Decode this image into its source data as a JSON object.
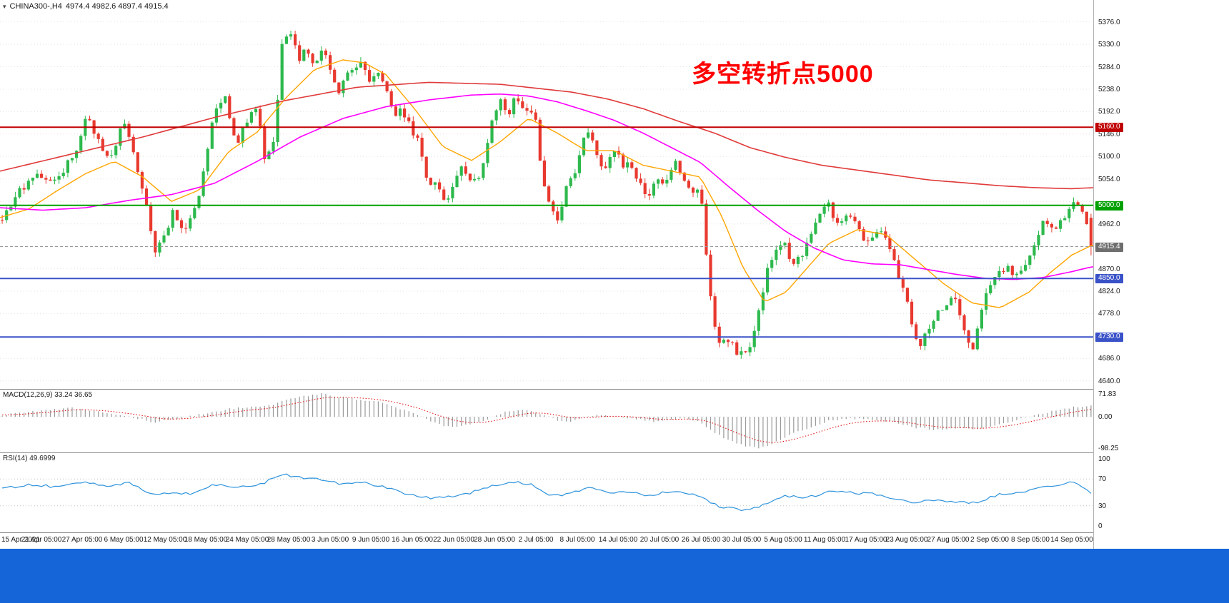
{
  "header": {
    "symbol_label": "CHINA300-,H4",
    "ohlc": "4974.4 4982.6 4897.4 4915.4"
  },
  "annotation": {
    "text": "多空转折点5000",
    "color": "#FF0000"
  },
  "colors": {
    "background": "#ffffff",
    "candle_up": "#2DB94D",
    "candle_down": "#E8392F",
    "ma_fast": "#FFA500",
    "ma_mid": "#FF00FF",
    "ma_slow": "#E03A3A",
    "macd_hist": "#9A9A9A",
    "macd_signal": "#E00000",
    "rsi_line": "#2E93DC",
    "grid": "#E4E4E4",
    "level_line": "#C0C0C0",
    "taskbar": "#1565D8",
    "scale_text": "#1a1a1a"
  },
  "price_scale": {
    "grid": {
      "min": 4640,
      "max": 5376,
      "step": 46
    },
    "ticks": [
      {
        "label": "5376.0",
        "price": 5376
      },
      {
        "label": "5330.0",
        "price": 5330
      },
      {
        "label": "5284.0",
        "price": 5284
      },
      {
        "label": "5238.0",
        "price": 5238
      },
      {
        "label": "5192.0",
        "price": 5192
      },
      {
        "label": "5146.0",
        "price": 5146
      },
      {
        "label": "5100.0",
        "price": 5100
      },
      {
        "label": "5054.0",
        "price": 5054
      },
      {
        "label": "4962.0",
        "price": 4962
      },
      {
        "label": "4870.0",
        "price": 4870
      },
      {
        "label": "4824.0",
        "price": 4824
      },
      {
        "label": "4778.0",
        "price": 4778
      },
      {
        "label": "4686.0",
        "price": 4686
      },
      {
        "label": "4640.0",
        "price": 4640
      }
    ],
    "badges": [
      {
        "label": "5160.0",
        "price": 5160,
        "color": "#C00000"
      },
      {
        "label": "5000.0",
        "price": 5000,
        "color": "#00A000"
      },
      {
        "label": "4915.4",
        "price": 4915.4,
        "color": "#6E6E6E"
      },
      {
        "label": "4850.0",
        "price": 4850,
        "color": "#3A52C8"
      },
      {
        "label": "4730.0",
        "price": 4730,
        "color": "#3A52C8"
      }
    ]
  },
  "indicators": {
    "macd": {
      "label": "MACD(12,26,9) 33.24 36.65",
      "scale": [
        {
          "label": "71.83",
          "value": 71.83
        },
        {
          "label": "0.00",
          "value": 0
        },
        {
          "label": "-98.25",
          "value": -98.25
        }
      ],
      "range": [
        -98.25,
        71.83
      ]
    },
    "rsi": {
      "label": "RSI(14) 49.6999",
      "scale": [
        {
          "label": "100",
          "value": 100
        },
        {
          "label": "70",
          "value": 70
        },
        {
          "label": "30",
          "value": 30
        },
        {
          "label": "0",
          "value": 0
        }
      ],
      "levels": [
        70,
        30
      ],
      "range": [
        0,
        100
      ]
    }
  },
  "time_scale": {
    "labels": [
      "15 Apr 2021",
      "21 Apr 05:00",
      "27 Apr 05:00",
      "6 May 05:00",
      "12 May 05:00",
      "18 May 05:00",
      "24 May 05:00",
      "28 May 05:00",
      "3 Jun 05:00",
      "9 Jun 05:00",
      "16 Jun 05:00",
      "22 Jun 05:00",
      "28 Jun 05:00",
      "2 Jul 05:00",
      "8 Jul 05:00",
      "14 Jul 05:00",
      "20 Jul 05:00",
      "26 Jul 05:00",
      "30 Jul 05:00",
      "5 Aug 05:00",
      "11 Aug 05:00",
      "17 Aug 05:00",
      "23 Aug 05:00",
      "27 Aug 05:00",
      "2 Sep 05:00",
      "8 Sep 05:00",
      "14 Sep 05:00"
    ]
  },
  "chart_data": {
    "type": "candlestick",
    "symbol": "CHINA300-",
    "timeframe": "H4",
    "title": "CHINA300- H4 with MACD(12,26,9) and RSI(14)",
    "current_bar": {
      "open": 4974.4,
      "high": 4982.6,
      "low": 4897.4,
      "close": 4915.4
    },
    "current_price": 4915.4,
    "price_range": [
      4628,
      5412
    ],
    "bars": 250,
    "close_path": [
      [
        0,
        4960
      ],
      [
        25,
        5030
      ],
      [
        55,
        5060
      ],
      [
        80,
        5050
      ],
      [
        105,
        5110
      ],
      [
        122,
        5185
      ],
      [
        140,
        5120
      ],
      [
        158,
        5100
      ],
      [
        172,
        5180
      ],
      [
        190,
        5090
      ],
      [
        205,
        4995
      ],
      [
        215,
        4905
      ],
      [
        228,
        4930
      ],
      [
        242,
        4985
      ],
      [
        255,
        4950
      ],
      [
        268,
        4975
      ],
      [
        282,
        5040
      ],
      [
        300,
        5190
      ],
      [
        315,
        5230
      ],
      [
        330,
        5120
      ],
      [
        345,
        5175
      ],
      [
        360,
        5200
      ],
      [
        372,
        5080
      ],
      [
        385,
        5150
      ],
      [
        395,
        5330
      ],
      [
        405,
        5360
      ],
      [
        418,
        5300
      ],
      [
        428,
        5330
      ],
      [
        440,
        5290
      ],
      [
        452,
        5330
      ],
      [
        462,
        5280
      ],
      [
        472,
        5230
      ],
      [
        482,
        5260
      ],
      [
        492,
        5280
      ],
      [
        505,
        5295
      ],
      [
        518,
        5250
      ],
      [
        530,
        5280
      ],
      [
        542,
        5230
      ],
      [
        552,
        5180
      ],
      [
        562,
        5200
      ],
      [
        575,
        5160
      ],
      [
        588,
        5120
      ],
      [
        600,
        5030
      ],
      [
        612,
        5050
      ],
      [
        622,
        5005
      ],
      [
        635,
        5040
      ],
      [
        648,
        5080
      ],
      [
        660,
        5050
      ],
      [
        672,
        5060
      ],
      [
        685,
        5150
      ],
      [
        700,
        5225
      ],
      [
        712,
        5180
      ],
      [
        722,
        5225
      ],
      [
        735,
        5200
      ],
      [
        748,
        5195
      ],
      [
        760,
        5040
      ],
      [
        772,
        4990
      ],
      [
        782,
        4960
      ],
      [
        795,
        5050
      ],
      [
        808,
        5080
      ],
      [
        820,
        5150
      ],
      [
        832,
        5120
      ],
      [
        845,
        5060
      ],
      [
        858,
        5120
      ],
      [
        870,
        5085
      ],
      [
        882,
        5080
      ],
      [
        895,
        5045
      ],
      [
        908,
        5020
      ],
      [
        920,
        5060
      ],
      [
        932,
        5040
      ],
      [
        944,
        5090
      ],
      [
        956,
        5055
      ],
      [
        968,
        5030
      ],
      [
        980,
        5045
      ],
      [
        992,
        4830
      ],
      [
        1005,
        4710
      ],
      [
        1018,
        4725
      ],
      [
        1032,
        4700
      ],
      [
        1045,
        4695
      ],
      [
        1058,
        4755
      ],
      [
        1072,
        4860
      ],
      [
        1085,
        4905
      ],
      [
        1098,
        4920
      ],
      [
        1110,
        4870
      ],
      [
        1122,
        4900
      ],
      [
        1135,
        4945
      ],
      [
        1148,
        4985
      ],
      [
        1160,
        5000
      ],
      [
        1172,
        4960
      ],
      [
        1185,
        4975
      ],
      [
        1198,
        4970
      ],
      [
        1210,
        4930
      ],
      [
        1222,
        4935
      ],
      [
        1235,
        4950
      ],
      [
        1248,
        4900
      ],
      [
        1260,
        4845
      ],
      [
        1272,
        4790
      ],
      [
        1285,
        4700
      ],
      [
        1298,
        4745
      ],
      [
        1310,
        4775
      ],
      [
        1322,
        4785
      ],
      [
        1335,
        4820
      ],
      [
        1348,
        4750
      ],
      [
        1360,
        4700
      ],
      [
        1372,
        4770
      ],
      [
        1385,
        4840
      ],
      [
        1398,
        4865
      ],
      [
        1410,
        4870
      ],
      [
        1422,
        4850
      ],
      [
        1435,
        4880
      ],
      [
        1448,
        4920
      ],
      [
        1460,
        4975
      ],
      [
        1472,
        4950
      ],
      [
        1482,
        4965
      ],
      [
        1492,
        4985
      ],
      [
        1502,
        5010
      ],
      [
        1512,
        4990
      ],
      [
        1522,
        4960
      ],
      [
        1528,
        4915
      ]
    ],
    "ma_fast_path": [
      [
        0,
        4975
      ],
      [
        40,
        4992
      ],
      [
        80,
        5030
      ],
      [
        120,
        5065
      ],
      [
        160,
        5090
      ],
      [
        200,
        5058
      ],
      [
        240,
        5008
      ],
      [
        280,
        5032
      ],
      [
        320,
        5110
      ],
      [
        360,
        5150
      ],
      [
        400,
        5220
      ],
      [
        440,
        5278
      ],
      [
        480,
        5298
      ],
      [
        510,
        5292
      ],
      [
        540,
        5268
      ],
      [
        580,
        5198
      ],
      [
        620,
        5120
      ],
      [
        660,
        5092
      ],
      [
        700,
        5130
      ],
      [
        740,
        5178
      ],
      [
        780,
        5148
      ],
      [
        820,
        5112
      ],
      [
        860,
        5112
      ],
      [
        900,
        5082
      ],
      [
        940,
        5070
      ],
      [
        980,
        5058
      ],
      [
        1010,
        4978
      ],
      [
        1040,
        4872
      ],
      [
        1070,
        4802
      ],
      [
        1100,
        4822
      ],
      [
        1130,
        4872
      ],
      [
        1160,
        4922
      ],
      [
        1200,
        4950
      ],
      [
        1240,
        4940
      ],
      [
        1280,
        4890
      ],
      [
        1320,
        4840
      ],
      [
        1360,
        4800
      ],
      [
        1400,
        4790
      ],
      [
        1440,
        4822
      ],
      [
        1470,
        4862
      ],
      [
        1500,
        4898
      ],
      [
        1528,
        4918
      ]
    ],
    "ma_mid_path": [
      [
        0,
        4995
      ],
      [
        60,
        4990
      ],
      [
        120,
        4995
      ],
      [
        180,
        5010
      ],
      [
        240,
        5022
      ],
      [
        300,
        5045
      ],
      [
        360,
        5090
      ],
      [
        420,
        5140
      ],
      [
        480,
        5178
      ],
      [
        540,
        5202
      ],
      [
        600,
        5216
      ],
      [
        660,
        5226
      ],
      [
        700,
        5228
      ],
      [
        740,
        5224
      ],
      [
        780,
        5212
      ],
      [
        820,
        5194
      ],
      [
        860,
        5174
      ],
      [
        900,
        5148
      ],
      [
        940,
        5118
      ],
      [
        980,
        5088
      ],
      [
        1020,
        5038
      ],
      [
        1060,
        4990
      ],
      [
        1100,
        4946
      ],
      [
        1140,
        4912
      ],
      [
        1180,
        4888
      ],
      [
        1220,
        4880
      ],
      [
        1260,
        4878
      ],
      [
        1300,
        4868
      ],
      [
        1340,
        4858
      ],
      [
        1380,
        4850
      ],
      [
        1420,
        4848
      ],
      [
        1460,
        4852
      ],
      [
        1500,
        4864
      ],
      [
        1528,
        4874
      ]
    ],
    "ma_slow_path": [
      [
        0,
        5070
      ],
      [
        100,
        5105
      ],
      [
        200,
        5140
      ],
      [
        300,
        5180
      ],
      [
        400,
        5215
      ],
      [
        500,
        5242
      ],
      [
        600,
        5252
      ],
      [
        700,
        5248
      ],
      [
        800,
        5232
      ],
      [
        850,
        5218
      ],
      [
        900,
        5198
      ],
      [
        950,
        5172
      ],
      [
        1000,
        5148
      ],
      [
        1050,
        5118
      ],
      [
        1100,
        5098
      ],
      [
        1150,
        5082
      ],
      [
        1200,
        5072
      ],
      [
        1250,
        5062
      ],
      [
        1300,
        5052
      ],
      [
        1350,
        5046
      ],
      [
        1400,
        5040
      ],
      [
        1450,
        5036
      ],
      [
        1500,
        5034
      ],
      [
        1528,
        5036
      ]
    ],
    "hlines": [
      {
        "price": 5160,
        "color": "#C00000",
        "width": 2,
        "dash": ""
      },
      {
        "price": 5000,
        "color": "#00A000",
        "width": 2,
        "dash": ""
      },
      {
        "price": 4850,
        "color": "#3A52C8",
        "width": 2,
        "dash": ""
      },
      {
        "price": 4730,
        "color": "#3A52C8",
        "width": 2,
        "dash": ""
      },
      {
        "price": 4915.4,
        "color": "#999999",
        "width": 1,
        "dash": "4,3"
      }
    ],
    "macd_path": [
      [
        0,
        5
      ],
      [
        60,
        20
      ],
      [
        100,
        28
      ],
      [
        130,
        18
      ],
      [
        160,
        8
      ],
      [
        200,
        -8
      ],
      [
        215,
        -18
      ],
      [
        250,
        -5
      ],
      [
        290,
        12
      ],
      [
        330,
        28
      ],
      [
        370,
        32
      ],
      [
        400,
        52
      ],
      [
        430,
        66
      ],
      [
        450,
        72
      ],
      [
        470,
        64
      ],
      [
        500,
        55
      ],
      [
        530,
        46
      ],
      [
        560,
        25
      ],
      [
        585,
        5
      ],
      [
        605,
        -18
      ],
      [
        630,
        -32
      ],
      [
        660,
        -24
      ],
      [
        685,
        -5
      ],
      [
        710,
        18
      ],
      [
        735,
        24
      ],
      [
        760,
        8
      ],
      [
        780,
        -10
      ],
      [
        800,
        -14
      ],
      [
        820,
        2
      ],
      [
        845,
        6
      ],
      [
        870,
        0
      ],
      [
        895,
        -8
      ],
      [
        915,
        -14
      ],
      [
        940,
        -8
      ],
      [
        960,
        -4
      ],
      [
        980,
        -18
      ],
      [
        1000,
        -48
      ],
      [
        1020,
        -75
      ],
      [
        1045,
        -92
      ],
      [
        1060,
        -98
      ],
      [
        1080,
        -86
      ],
      [
        1100,
        -62
      ],
      [
        1130,
        -36
      ],
      [
        1160,
        -12
      ],
      [
        1190,
        -5
      ],
      [
        1220,
        -9
      ],
      [
        1250,
        -16
      ],
      [
        1280,
        -34
      ],
      [
        1310,
        -40
      ],
      [
        1340,
        -34
      ],
      [
        1365,
        -40
      ],
      [
        1390,
        -28
      ],
      [
        1420,
        -12
      ],
      [
        1450,
        6
      ],
      [
        1480,
        22
      ],
      [
        1505,
        31
      ],
      [
        1528,
        33.24
      ]
    ],
    "rsi_path": [
      [
        0,
        55
      ],
      [
        40,
        62
      ],
      [
        80,
        58
      ],
      [
        120,
        66
      ],
      [
        150,
        60
      ],
      [
        180,
        64
      ],
      [
        215,
        45
      ],
      [
        240,
        50
      ],
      [
        270,
        48
      ],
      [
        300,
        62
      ],
      [
        330,
        58
      ],
      [
        360,
        60
      ],
      [
        395,
        77
      ],
      [
        420,
        72
      ],
      [
        450,
        70
      ],
      [
        480,
        62
      ],
      [
        510,
        65
      ],
      [
        540,
        57
      ],
      [
        570,
        48
      ],
      [
        600,
        42
      ],
      [
        630,
        44
      ],
      [
        660,
        50
      ],
      [
        690,
        60
      ],
      [
        720,
        65
      ],
      [
        745,
        62
      ],
      [
        770,
        45
      ],
      [
        800,
        48
      ],
      [
        820,
        57
      ],
      [
        850,
        50
      ],
      [
        880,
        52
      ],
      [
        910,
        45
      ],
      [
        940,
        52
      ],
      [
        965,
        48
      ],
      [
        985,
        40
      ],
      [
        1010,
        28
      ],
      [
        1040,
        24
      ],
      [
        1060,
        28
      ],
      [
        1080,
        35
      ],
      [
        1100,
        45
      ],
      [
        1130,
        42
      ],
      [
        1160,
        52
      ],
      [
        1190,
        50
      ],
      [
        1220,
        48
      ],
      [
        1250,
        42
      ],
      [
        1280,
        35
      ],
      [
        1310,
        38
      ],
      [
        1340,
        36
      ],
      [
        1365,
        34
      ],
      [
        1390,
        45
      ],
      [
        1420,
        50
      ],
      [
        1450,
        55
      ],
      [
        1480,
        62
      ],
      [
        1505,
        65
      ],
      [
        1528,
        49.7
      ]
    ]
  }
}
